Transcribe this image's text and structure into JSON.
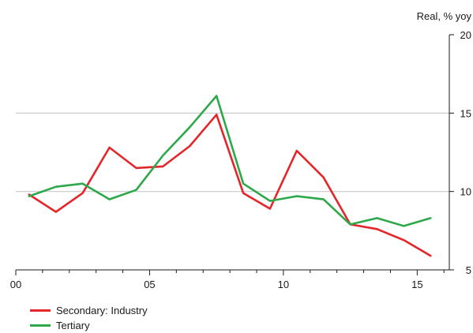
{
  "chart_data": {
    "type": "line",
    "ylabel": "Real, % yoy",
    "ylim": [
      5,
      20
    ],
    "yticks": [
      5,
      10,
      15,
      20
    ],
    "xlim": [
      2000,
      2016.2
    ],
    "xticks": [
      {
        "value": 2000,
        "label": "00"
      },
      {
        "value": 2005,
        "label": "05"
      },
      {
        "value": 2010,
        "label": "10"
      },
      {
        "value": 2015,
        "label": "15"
      }
    ],
    "gridlines": [
      10,
      15
    ],
    "x": [
      2000.5,
      2001.5,
      2002.5,
      2003.5,
      2004.5,
      2005.5,
      2006.5,
      2007.5,
      2008.5,
      2009.5,
      2010.5,
      2011.5,
      2012.5,
      2013.5,
      2014.5,
      2015.5
    ],
    "series": [
      {
        "name": "Secondary: Industry",
        "color": "#e3262a",
        "values": [
          9.8,
          8.7,
          9.9,
          12.8,
          11.5,
          11.6,
          12.9,
          14.9,
          9.9,
          8.9,
          12.6,
          10.9,
          7.9,
          7.6,
          6.9,
          5.9
        ]
      },
      {
        "name": "Tertiary",
        "color": "#2ea84a",
        "values": [
          9.7,
          10.3,
          10.5,
          9.5,
          10.1,
          12.3,
          14.1,
          16.1,
          10.5,
          9.4,
          9.7,
          9.5,
          7.9,
          8.3,
          7.8,
          8.3
        ]
      }
    ],
    "legend_position": "bottom-left"
  }
}
